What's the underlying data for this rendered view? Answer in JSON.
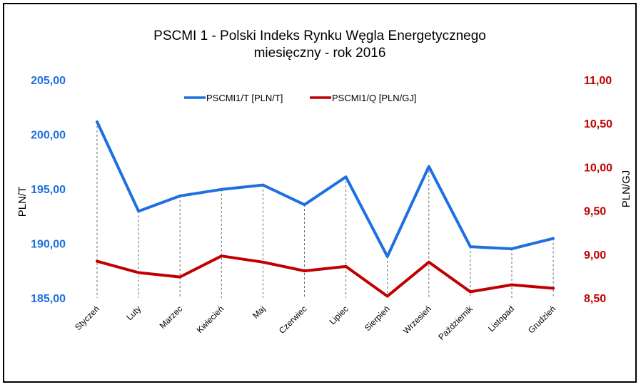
{
  "chart_data": {
    "type": "line",
    "title": "PSCMI 1 - Polski Indeks Rynku Węgla Energetycznego",
    "subtitle": "miesięczny - rok 2016",
    "categories": [
      "Styczeń",
      "Luty",
      "Marzec",
      "Kwiecień",
      "Maj",
      "Czerwiec",
      "Lipiec",
      "Sierpień",
      "Wrzesień",
      "Październik",
      "Listopad",
      "Grudzień"
    ],
    "series": [
      {
        "name": "PSCMI1/T  [PLN/T]",
        "axis": "left",
        "color": "#1e6fe0",
        "values": [
          201.15,
          192.95,
          194.35,
          194.95,
          195.35,
          193.55,
          196.1,
          188.8,
          197.05,
          189.7,
          189.5,
          190.45
        ]
      },
      {
        "name": "PSCMI1/Q  [PLN/GJ]",
        "axis": "right",
        "color": "#c00000",
        "values": [
          8.92,
          8.79,
          8.74,
          8.98,
          8.91,
          8.81,
          8.86,
          8.52,
          8.91,
          8.57,
          8.65,
          8.61
        ]
      }
    ],
    "ylabel_left": "PLN/T",
    "ylabel_right": "PLN/GJ",
    "ylim_left": [
      185,
      205
    ],
    "ylim_right": [
      8.5,
      11
    ],
    "yticks_left": [
      "185,00",
      "190,00",
      "195,00",
      "200,00",
      "205,00"
    ],
    "yticks_right": [
      "8,50",
      "9,00",
      "9,50",
      "10,00",
      "10,50",
      "11,00"
    ],
    "legend_position": "top-center",
    "drop_lines": true
  }
}
